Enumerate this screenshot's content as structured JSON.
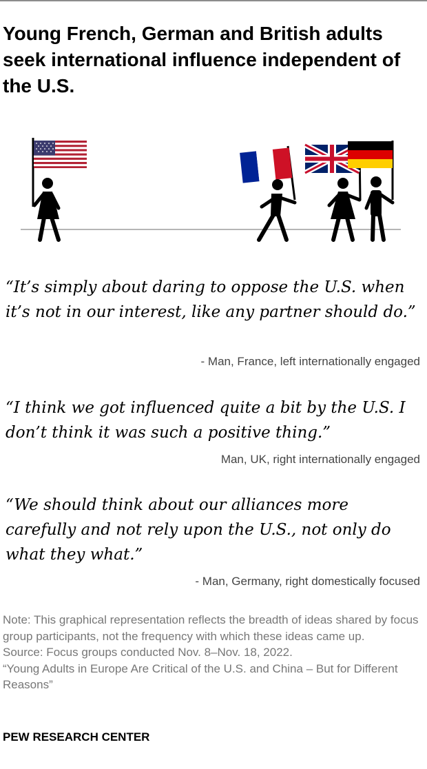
{
  "title": "Young French, German and British adults seek international influence independent of the U.S.",
  "illustration": {
    "icons": [
      "us-flag-icon",
      "france-flag-icon",
      "uk-flag-icon",
      "germany-flag-icon",
      "person-icon"
    ],
    "colors": {
      "us_red": "#b22234",
      "us_blue": "#3c3b6e",
      "fr_blue": "#002395",
      "fr_red": "#ce1126",
      "uk_blue": "#012169",
      "uk_red": "#c8102e",
      "de_black": "#000000",
      "de_red": "#dd0000",
      "de_gold": "#ffce00"
    }
  },
  "quotes": [
    {
      "text": "“It’s simply about daring to oppose the U.S. when it’s not in our interest, like any partner should do.”",
      "attribution": "- Man, France, left internationally engaged"
    },
    {
      "text": "“I think we got influenced quite a bit by the U.S. I don’t think it was such a positive thing.”",
      "attribution": "Man, UK, right internationally engaged"
    },
    {
      "text": "“We should think about our alliances more carefully and not rely upon the U.S., not only do what they what.”",
      "attribution": "- Man, Germany, right domestically focused"
    }
  ],
  "note": "Note: This graphical representation reflects the breadth of ideas shared by focus group participants, not the frequency with which these ideas came up.",
  "source": "Source: Focus groups conducted Nov. 8–Nov. 18, 2022.",
  "report": "“Young Adults in Europe Are Critical of the U.S. and China – But for Different Reasons”",
  "brand": "PEW RESEARCH CENTER"
}
